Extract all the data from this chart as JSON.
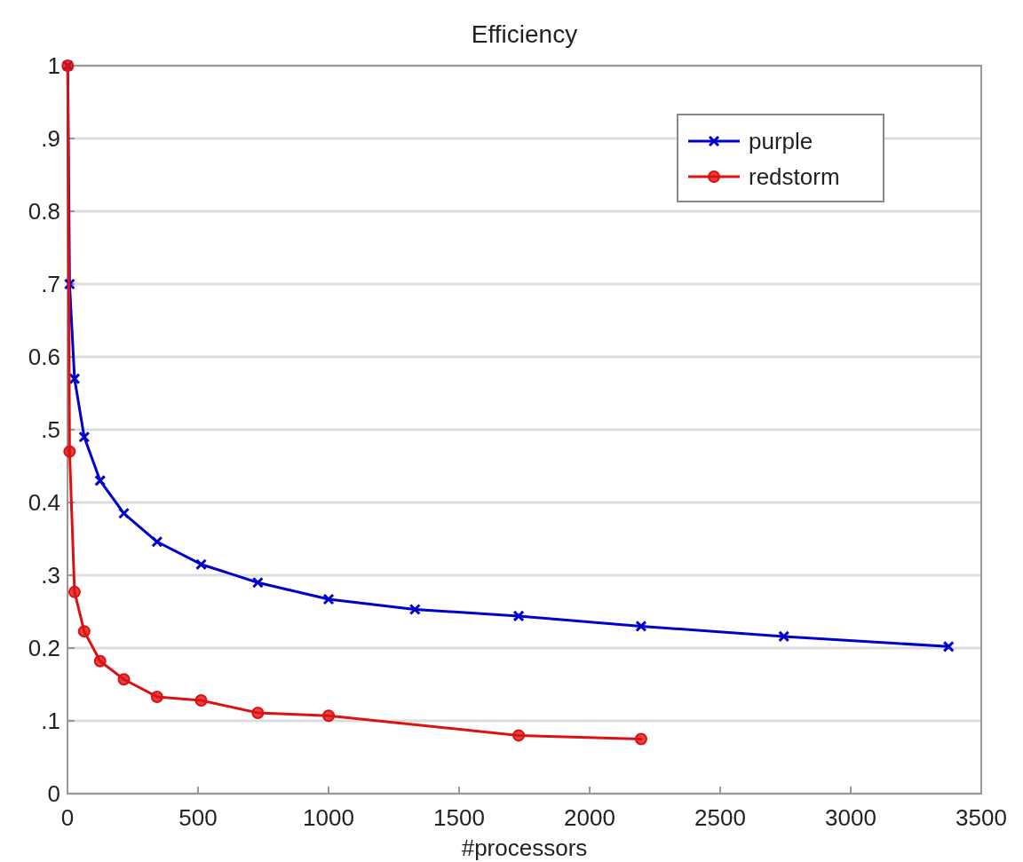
{
  "chart_data": {
    "type": "line",
    "title": "Efficiency",
    "xlabel": "#processors",
    "xlim": [
      0,
      3500
    ],
    "xticks": [
      0,
      500,
      1000,
      1500,
      2000,
      2500,
      3000,
      3500
    ],
    "ylim": [
      0,
      1
    ],
    "yticks": [
      0,
      {
        "value": 0.1,
        "label": ".1"
      },
      0.2,
      {
        "value": 0.3,
        "label": ".3"
      },
      0.4,
      {
        "value": 0.5,
        "label": ".5"
      },
      0.6,
      {
        "value": 0.7,
        "label": ".7"
      },
      0.8,
      {
        "value": 0.9,
        "label": ".9"
      },
      1
    ],
    "grid": "y",
    "legend": "top right",
    "line_style": "solid",
    "series": [
      {
        "name": "purple",
        "color": "#0000cc",
        "marker": "cross",
        "x": [
          1,
          8,
          27,
          64,
          125,
          216,
          343,
          512,
          729,
          1000,
          1331,
          1728,
          2197,
          2744,
          3375
        ],
        "values": [
          1,
          0.7,
          0.57,
          0.49,
          0.43,
          0.385,
          0.346,
          0.315,
          0.29,
          0.267,
          0.253,
          0.244,
          0.23,
          0.216,
          0.202
        ]
      },
      {
        "name": "redstorm",
        "color": "#dd1111",
        "marker": "circle",
        "x": [
          1,
          8,
          27,
          64,
          125,
          216,
          343,
          512,
          729,
          1000,
          1728,
          2197
        ],
        "values": [
          1,
          0.47,
          0.277,
          0.223,
          0.182,
          0.157,
          0.133,
          0.128,
          0.111,
          0.107,
          0.08,
          0.075
        ]
      }
    ]
  }
}
